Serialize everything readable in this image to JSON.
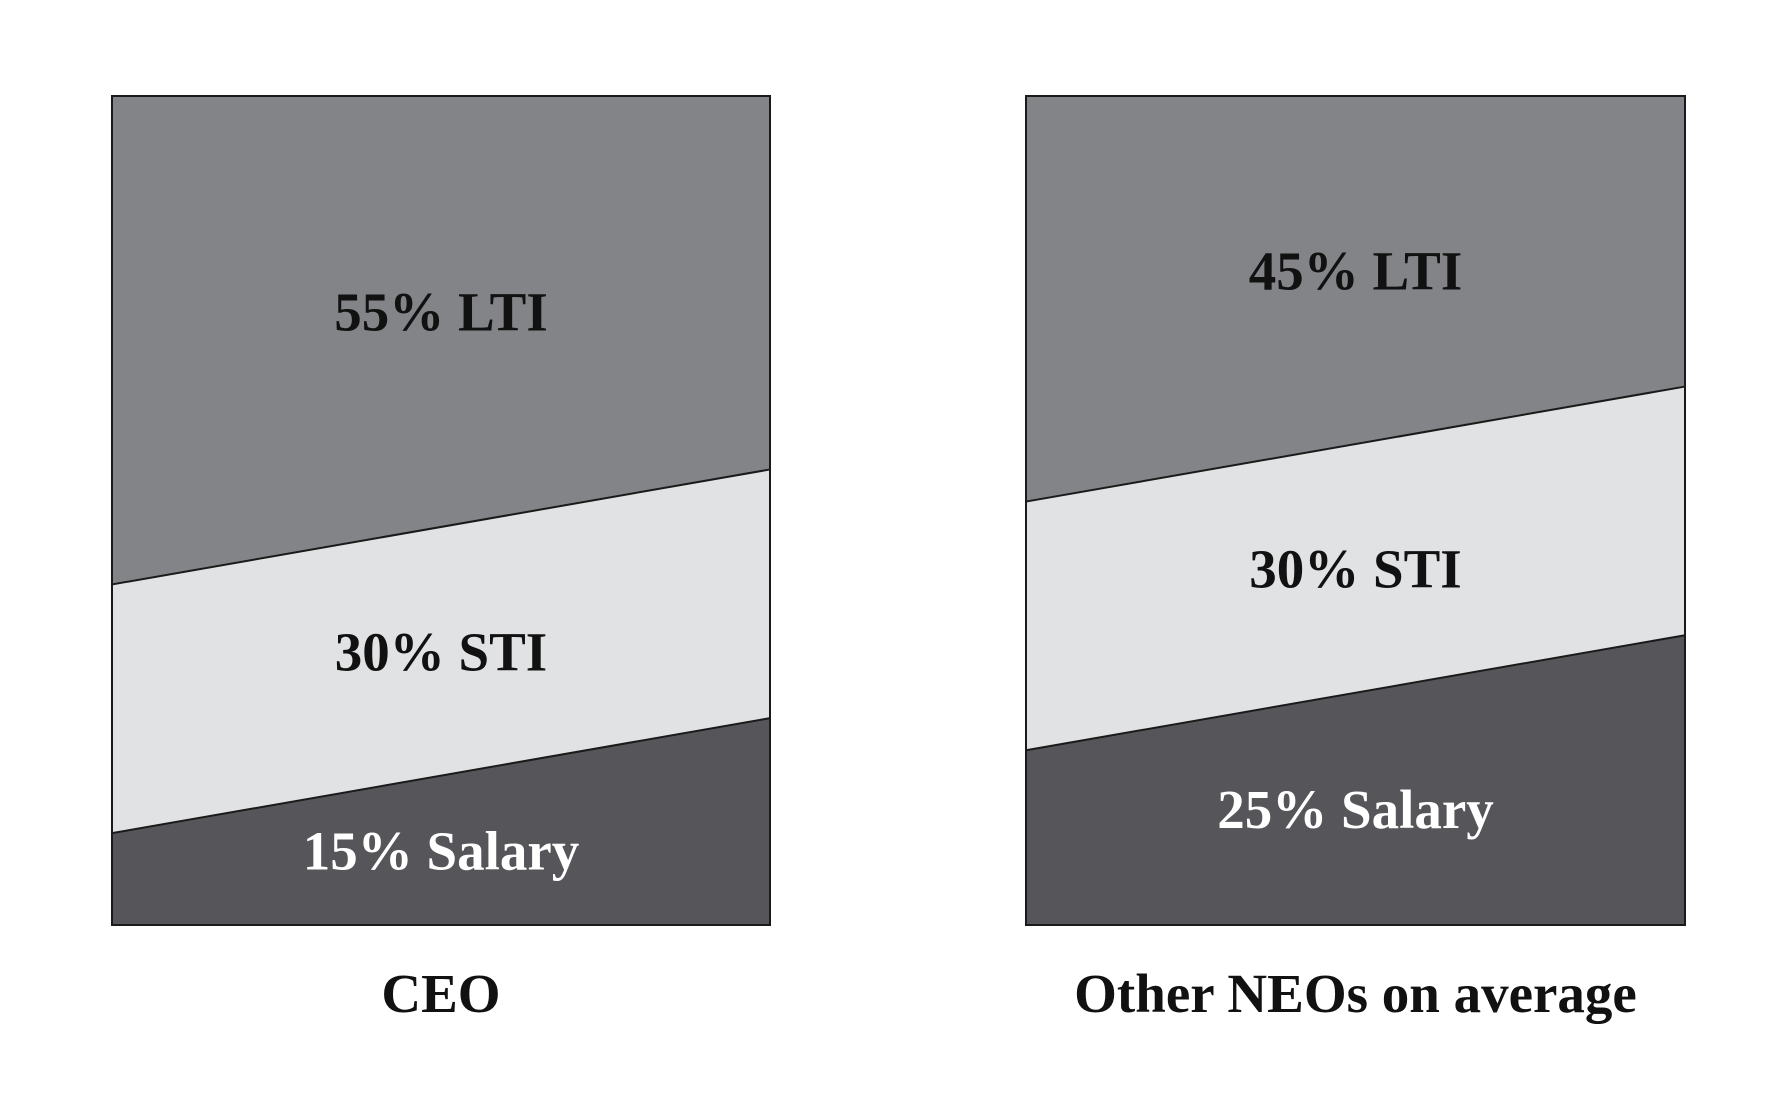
{
  "colors": {
    "lti": "#838488",
    "sti": "#e1e2e4",
    "salary": "#56565a",
    "outline": "#1a1a1a",
    "dark_text": "#111111",
    "light_text": "#ffffff"
  },
  "chart_data": [
    {
      "type": "stacked-area",
      "title": "CEO",
      "segments": [
        {
          "name": "Salary",
          "value": 15,
          "label": "15% Salary"
        },
        {
          "name": "STI",
          "value": 30,
          "label": "30% STI"
        },
        {
          "name": "LTI",
          "value": 55,
          "label": "55% LTI"
        }
      ]
    },
    {
      "type": "stacked-area",
      "title": "Other NEOs on average",
      "segments": [
        {
          "name": "Salary",
          "value": 25,
          "label": "25% Salary"
        },
        {
          "name": "STI",
          "value": 30,
          "label": "30% STI"
        },
        {
          "name": "LTI",
          "value": 45,
          "label": "45% LTI"
        }
      ]
    }
  ]
}
